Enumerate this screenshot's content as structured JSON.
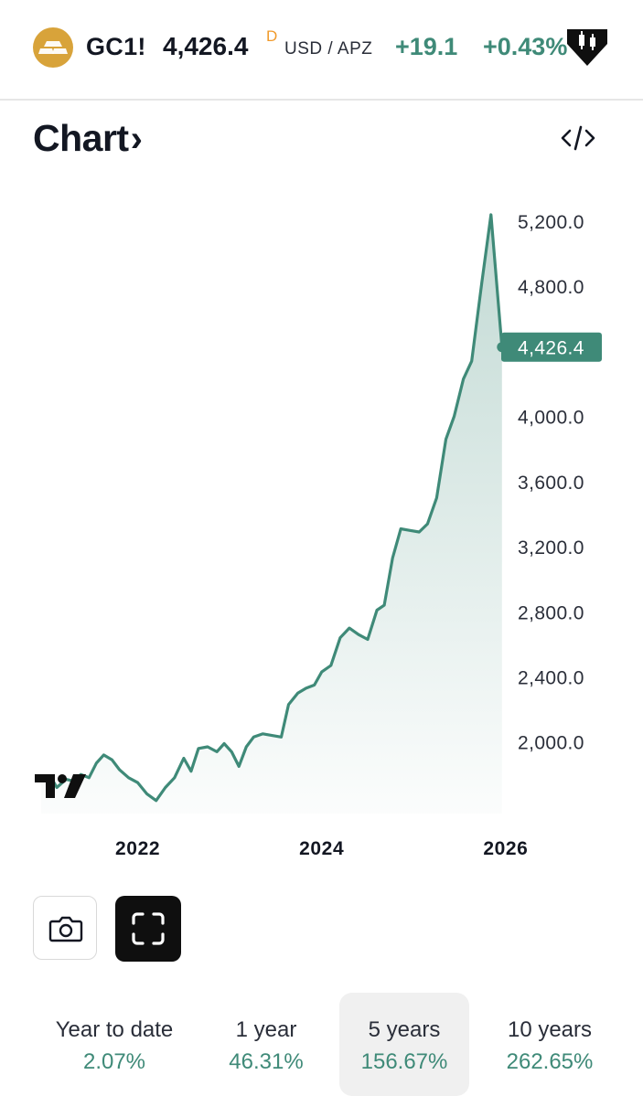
{
  "header": {
    "symbol": "GC1!",
    "price": "4,426.4",
    "price_flag": "D",
    "currency": "USD / APZ",
    "change": "+19.1",
    "change_percent": "+0.43%"
  },
  "chart_title": "Chart",
  "colors": {
    "accent": "#3f8a78",
    "gold": "#d8a33a",
    "flag": "#f19a2b"
  },
  "periods": [
    {
      "label": "Year to date",
      "value": "2.07%"
    },
    {
      "label": "1 year",
      "value": "46.31%"
    },
    {
      "label": "5 years",
      "value": "156.67%",
      "active": true
    },
    {
      "label": "10 years",
      "value": "262.65%"
    }
  ],
  "chart_data": {
    "type": "area",
    "title": "",
    "xlabel": "",
    "ylabel": "",
    "x_ticks": [
      {
        "label": "2022",
        "x": 2022.0
      },
      {
        "label": "2024",
        "x": 2024.0
      },
      {
        "label": "2026",
        "x": 2026.0
      }
    ],
    "y_ticks": [
      {
        "label": "2,000.0",
        "value": 2000
      },
      {
        "label": "2,400.0",
        "value": 2400
      },
      {
        "label": "2,800.0",
        "value": 2800
      },
      {
        "label": "3,200.0",
        "value": 3200
      },
      {
        "label": "3,600.0",
        "value": 3600
      },
      {
        "label": "4,000.0",
        "value": 4000
      },
      {
        "label": "4,800.0",
        "value": 4800
      },
      {
        "label": "5,200.0",
        "value": 5200
      }
    ],
    "ylim": [
      1560,
      5290
    ],
    "xlim": [
      2020.9,
      2026.25
    ],
    "last_value_label": "4,426.4",
    "series": [
      {
        "points": [
          [
            2020.95,
            1770
          ],
          [
            2021.05,
            1790
          ],
          [
            2021.12,
            1720
          ],
          [
            2021.22,
            1770
          ],
          [
            2021.3,
            1760
          ],
          [
            2021.38,
            1800
          ],
          [
            2021.47,
            1780
          ],
          [
            2021.55,
            1870
          ],
          [
            2021.63,
            1920
          ],
          [
            2021.72,
            1890
          ],
          [
            2021.8,
            1830
          ],
          [
            2021.9,
            1780
          ],
          [
            2022.0,
            1750
          ],
          [
            2022.1,
            1680
          ],
          [
            2022.2,
            1640
          ],
          [
            2022.3,
            1720
          ],
          [
            2022.4,
            1780
          ],
          [
            2022.5,
            1900
          ],
          [
            2022.58,
            1820
          ],
          [
            2022.66,
            1960
          ],
          [
            2022.76,
            1970
          ],
          [
            2022.86,
            1940
          ],
          [
            2022.94,
            1990
          ],
          [
            2023.02,
            1940
          ],
          [
            2023.1,
            1850
          ],
          [
            2023.18,
            1970
          ],
          [
            2023.26,
            2030
          ],
          [
            2023.36,
            2050
          ],
          [
            2023.46,
            2040
          ],
          [
            2023.56,
            2030
          ],
          [
            2023.64,
            2230
          ],
          [
            2023.74,
            2300
          ],
          [
            2023.83,
            2330
          ],
          [
            2023.92,
            2350
          ],
          [
            2024.0,
            2430
          ],
          [
            2024.1,
            2470
          ],
          [
            2024.2,
            2640
          ],
          [
            2024.3,
            2700
          ],
          [
            2024.4,
            2660
          ],
          [
            2024.5,
            2630
          ],
          [
            2024.6,
            2810
          ],
          [
            2024.68,
            2840
          ],
          [
            2024.77,
            3130
          ],
          [
            2024.86,
            3310
          ],
          [
            2024.96,
            3300
          ],
          [
            2025.06,
            3290
          ],
          [
            2025.15,
            3340
          ],
          [
            2025.25,
            3500
          ],
          [
            2025.35,
            3860
          ],
          [
            2025.44,
            4000
          ],
          [
            2025.54,
            4230
          ],
          [
            2025.63,
            4340
          ],
          [
            2025.74,
            4820
          ],
          [
            2025.84,
            5240
          ],
          [
            2025.96,
            4426.4
          ]
        ]
      }
    ]
  }
}
